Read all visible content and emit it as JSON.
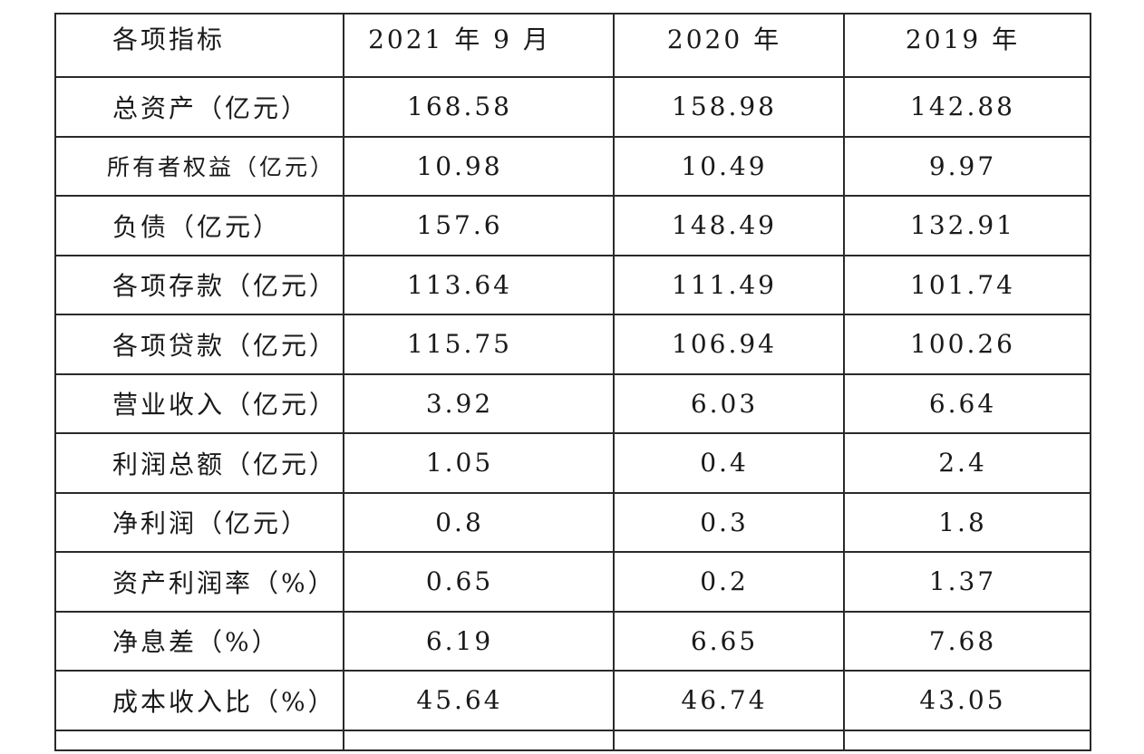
{
  "table": {
    "headers": [
      "各项指标",
      "2021 年 9 月",
      "2020 年",
      "2019 年"
    ],
    "rows": [
      {
        "label": "总资产（亿元）",
        "values": [
          "168.58",
          "158.98",
          "142.88"
        ]
      },
      {
        "label": "所有者权益（亿元）",
        "values": [
          "10.98",
          "10.49",
          "9.97"
        ]
      },
      {
        "label": "负债（亿元）",
        "values": [
          "157.6",
          "148.49",
          "132.91"
        ]
      },
      {
        "label": "各项存款（亿元）",
        "values": [
          "113.64",
          "111.49",
          "101.74"
        ]
      },
      {
        "label": "各项贷款（亿元）",
        "values": [
          "115.75",
          "106.94",
          "100.26"
        ]
      },
      {
        "label": "营业收入（亿元）",
        "values": [
          "3.92",
          "6.03",
          "6.64"
        ]
      },
      {
        "label": "利润总额（亿元）",
        "values": [
          "1.05",
          "0.4",
          "2.4"
        ]
      },
      {
        "label": "净利润（亿元）",
        "values": [
          "0.8",
          "0.3",
          "1.8"
        ]
      },
      {
        "label": "资产利润率（%）",
        "values": [
          "0.65",
          "0.2",
          "1.37"
        ]
      },
      {
        "label": "净息差（%）",
        "values": [
          "6.19",
          "6.65",
          "7.68"
        ]
      },
      {
        "label": "成本收入比（%）",
        "values": [
          "45.64",
          "46.74",
          "43.05"
        ]
      }
    ]
  }
}
